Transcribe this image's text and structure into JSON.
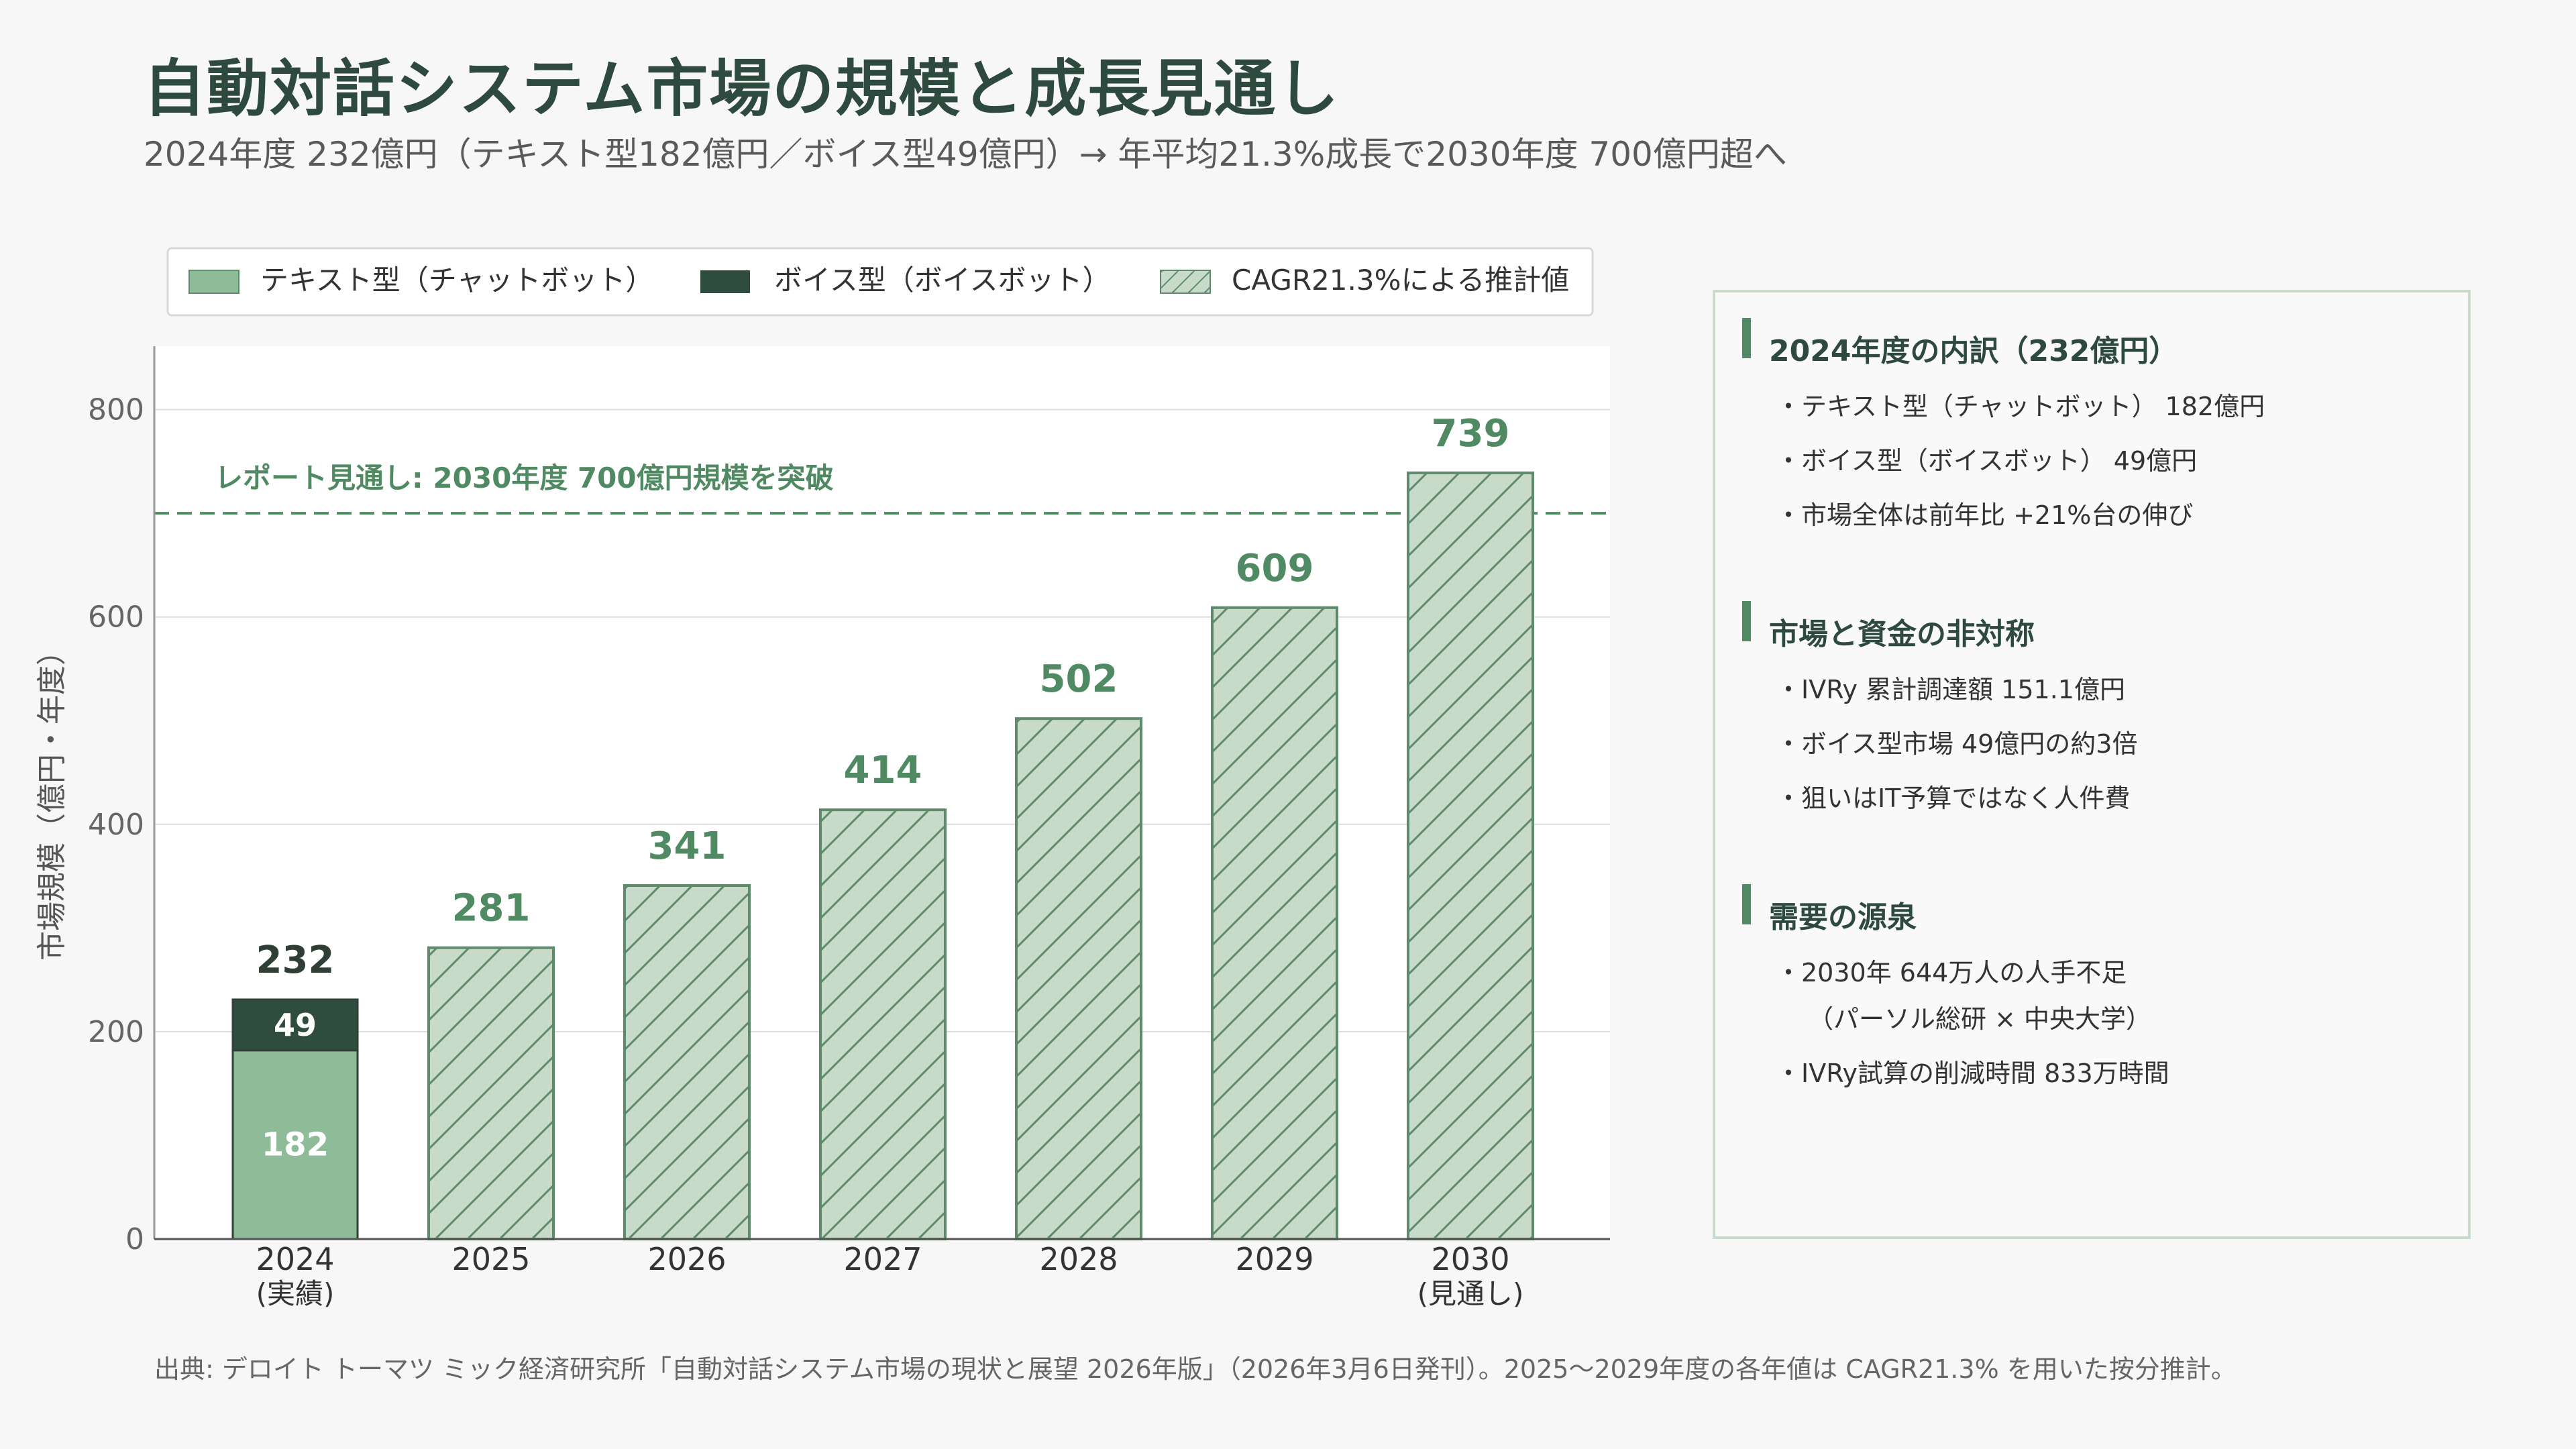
{
  "title": "自動対話システム市場の規模と成長見通し",
  "subtitle": "2024年度 232億円（テキスト型182億円／ボイス型49億円）→ 年平均21.3%成長で2030年度 700億円超へ",
  "colors": {
    "text_type": "#8fbc98",
    "voice_type": "#2f4d3f",
    "estimate_fill": "#c8dac8",
    "estimate_stroke": "#5f8a6c",
    "accent": "#4f8a62",
    "label_dark": "#2f3f36"
  },
  "chart_data": {
    "type": "bar",
    "categories": [
      "2024\n(実績)",
      "2025",
      "2026",
      "2027",
      "2028",
      "2029",
      "2030\n(見通し)"
    ],
    "series": [
      {
        "name": "テキスト型（チャットボット）",
        "values": [
          182,
          null,
          null,
          null,
          null,
          null,
          null
        ]
      },
      {
        "name": "ボイス型（ボイスボット）",
        "values": [
          49,
          null,
          null,
          null,
          null,
          null,
          null
        ]
      },
      {
        "name": "CAGR21.3%による推計値",
        "values": [
          null,
          281,
          341,
          414,
          502,
          609,
          739
        ]
      }
    ],
    "totals": [
      232,
      281,
      341,
      414,
      502,
      609,
      739
    ],
    "ylabel": "市場規模（億円・年度）",
    "ylim": [
      0,
      860
    ],
    "yticks": [
      0,
      200,
      400,
      600,
      800
    ],
    "grid": true,
    "legend_position": "top",
    "reference_line": {
      "value": 700,
      "label": "レポート見通し: 2030年度 700億円規模を突破"
    }
  },
  "side_panel": {
    "sections": [
      {
        "heading": "2024年度の内訳（232億円）",
        "items": [
          "・テキスト型（チャットボット） 182億円",
          "・ボイス型（ボイスボット） 49億円",
          "・市場全体は前年比 +21%台の伸び"
        ]
      },
      {
        "heading": "市場と資金の非対称",
        "items": [
          "・IVRy 累計調達額 151.1億円",
          "・ボイス型市場 49億円の約3倍",
          "・狙いはIT予算ではなく人件費"
        ]
      },
      {
        "heading": "需要の源泉",
        "items": [
          "・2030年 644万人の人手不足",
          "（パーソル総研 × 中央大学）",
          "・IVRy試算の削減時間 833万時間"
        ]
      }
    ]
  },
  "footnote": "出典: デロイト トーマツ ミック経済研究所「自動対話システム市場の現状と展望 2026年版」（2026年3月6日発刊）。2025〜2029年度の各年値は CAGR21.3% を用いた按分推計。"
}
